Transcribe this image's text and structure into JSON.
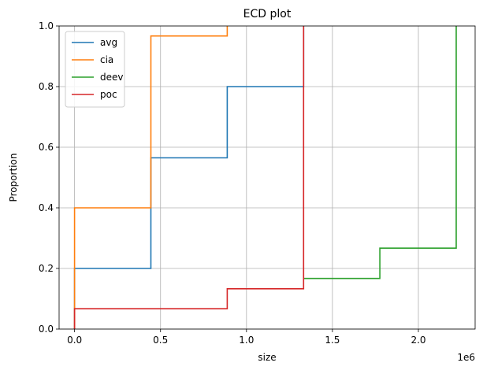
{
  "chart_data": {
    "type": "line",
    "drawstyle": "step-post",
    "title": "ECD plot",
    "xlabel": "size",
    "ylabel": "Proportion",
    "x_offset_label": "1e6",
    "xlim": [
      -90000,
      2330000
    ],
    "ylim": [
      0.0,
      1.0
    ],
    "xticks": [
      0,
      500000,
      1000000,
      1500000,
      2000000
    ],
    "xtick_labels": [
      "0.0",
      "0.5",
      "1.0",
      "1.5",
      "2.0"
    ],
    "yticks": [
      0.0,
      0.2,
      0.4,
      0.6,
      0.8,
      1.0
    ],
    "ytick_labels": [
      "0.0",
      "0.2",
      "0.4",
      "0.6",
      "0.8",
      "1.0"
    ],
    "grid": true,
    "legend_position": "top-left",
    "series": [
      {
        "name": "avg",
        "color": "#1f77b4",
        "x": [
          0,
          0,
          444000,
          444000,
          888000,
          888000,
          1332000,
          1332000
        ],
        "y": [
          0.0,
          0.2,
          0.2,
          0.565,
          0.565,
          0.8,
          0.8,
          1.0
        ]
      },
      {
        "name": "cia",
        "color": "#ff7f0e",
        "x": [
          0,
          0,
          444000,
          444000,
          888000,
          888000
        ],
        "y": [
          0.0,
          0.4,
          0.4,
          0.967,
          0.967,
          1.0
        ]
      },
      {
        "name": "deev",
        "color": "#2ca02c",
        "x": [
          1332000,
          1776000,
          1776000,
          2220000,
          2220000
        ],
        "y": [
          0.167,
          0.167,
          0.267,
          0.267,
          1.0
        ]
      },
      {
        "name": "poc",
        "color": "#d62728",
        "x": [
          0,
          0,
          888000,
          888000,
          1332000,
          1332000
        ],
        "y": [
          0.0,
          0.067,
          0.067,
          0.133,
          0.133,
          1.0
        ]
      }
    ]
  }
}
